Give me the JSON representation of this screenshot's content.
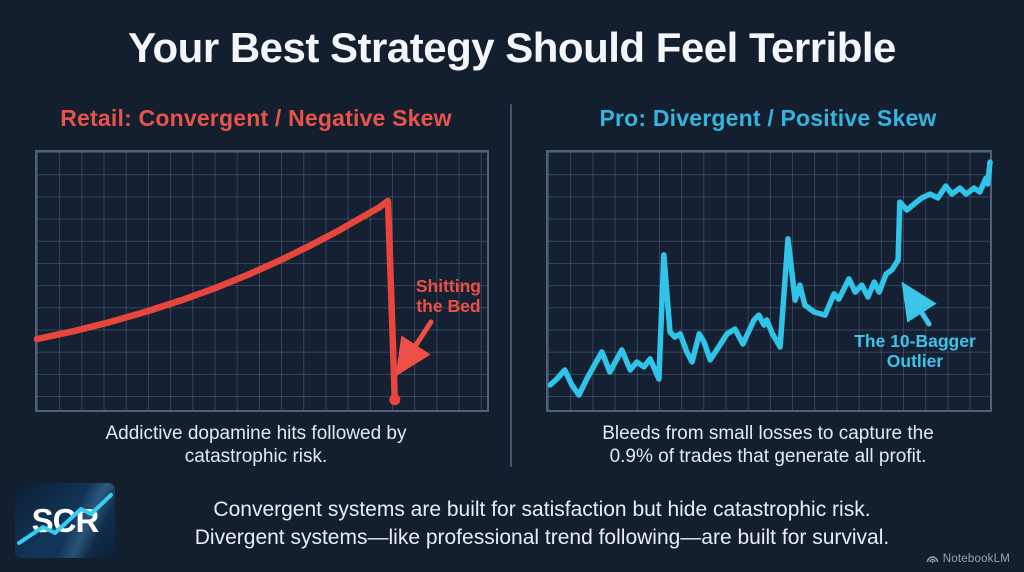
{
  "page": {
    "title": "Your Best Strategy Should Feel Terrible",
    "watermark_label": "NotebookLM",
    "background_color": "#131e2f"
  },
  "left_panel": {
    "heading": "Retail: Convergent / Negative Skew",
    "heading_color": "#e8544a",
    "annotation_line1": "Shitting",
    "annotation_line2": "the Bed",
    "caption_line1": "Addictive dopamine hits followed by",
    "caption_line2": "catastrophic risk."
  },
  "right_panel": {
    "heading": "Pro: Divergent / Positive Skew",
    "heading_color": "#35b5de",
    "annotation_line1": "The 10-Bagger",
    "annotation_line2": "Outlier",
    "caption_line1": "Bleeds from small losses to capture the",
    "caption_line2": "0.9% of trades that generate all profit."
  },
  "footer": {
    "logo_text": "SCR",
    "line1": "Convergent systems are built for satisfaction but hide catastrophic risk.",
    "line2": "Divergent systems—like professional trend following—are built for survival."
  },
  "chart_data": [
    {
      "type": "line",
      "title": "Retail: Convergent / Negative Skew",
      "description": "Schematic equity curve: smooth accelerating gains ending in a catastrophic vertical crash marked by a dot",
      "annotation": "Shitting the Bed",
      "color": "#e8453c",
      "grid": true,
      "axes": "none (schematic, no tick labels)",
      "xlabel": "",
      "ylabel": "",
      "xlim_pct": [
        0,
        100
      ],
      "ylim_pct": [
        0,
        100
      ],
      "end_dot": true,
      "points_pct": [
        [
          0,
          27.5
        ],
        [
          8,
          30.5
        ],
        [
          16,
          34
        ],
        [
          24,
          38
        ],
        [
          32,
          42.5
        ],
        [
          40,
          47.5
        ],
        [
          47,
          52.5
        ],
        [
          54,
          58
        ],
        [
          61,
          64
        ],
        [
          67,
          69.5
        ],
        [
          72,
          74.5
        ],
        [
          76,
          78.5
        ],
        [
          78,
          81
        ],
        [
          79.5,
          4
        ]
      ]
    },
    {
      "type": "line",
      "title": "Pro: Divergent / Positive Skew",
      "description": "Schematic equity curve: jagged small losses and spikes grinding upward, with a large outlier jump near the right labeled 'The 10-Bagger Outlier'",
      "annotation": "The 10-Bagger Outlier",
      "color": "#2fc4e8",
      "grid": true,
      "axes": "none (schematic, no tick labels)",
      "xlabel": "",
      "ylabel": "",
      "xlim_pct": [
        0,
        100
      ],
      "ylim_pct": [
        0,
        100
      ],
      "end_dot": false,
      "points_pct": [
        [
          0.5,
          9.7
        ],
        [
          2,
          12
        ],
        [
          3.8,
          15.5
        ],
        [
          5.4,
          9.7
        ],
        [
          7,
          5.8
        ],
        [
          9,
          12.8
        ],
        [
          12.2,
          22.5
        ],
        [
          14,
          14.7
        ],
        [
          16.7,
          23.3
        ],
        [
          18.6,
          15.5
        ],
        [
          20.1,
          18.6
        ],
        [
          21.7,
          16.7
        ],
        [
          23.1,
          19.8
        ],
        [
          25.1,
          12
        ],
        [
          26.2,
          60.1
        ],
        [
          27.6,
          30.2
        ],
        [
          28.7,
          28.3
        ],
        [
          29.9,
          29.5
        ],
        [
          31.4,
          22.5
        ],
        [
          32.6,
          18.6
        ],
        [
          34.2,
          29.5
        ],
        [
          35.3,
          26.4
        ],
        [
          36.7,
          19.4
        ],
        [
          38.9,
          25.2
        ],
        [
          40.5,
          29.5
        ],
        [
          42.3,
          31.4
        ],
        [
          44.1,
          25.6
        ],
        [
          46.6,
          34.9
        ],
        [
          47.7,
          36.8
        ],
        [
          48.9,
          32.9
        ],
        [
          49.5,
          34.9
        ],
        [
          50.7,
          29.8
        ],
        [
          52.5,
          24.4
        ],
        [
          54.3,
          66.3
        ],
        [
          55.9,
          42.6
        ],
        [
          57,
          48.4
        ],
        [
          58.1,
          40.7
        ],
        [
          60.2,
          38
        ],
        [
          62.7,
          36.8
        ],
        [
          64.7,
          45
        ],
        [
          65.8,
          43
        ],
        [
          68.1,
          50.8
        ],
        [
          69.5,
          45.7
        ],
        [
          71,
          48.4
        ],
        [
          72.4,
          43.8
        ],
        [
          73.8,
          49.6
        ],
        [
          74.9,
          45.7
        ],
        [
          76.5,
          52.7
        ],
        [
          77.8,
          54.3
        ],
        [
          79.2,
          58.1
        ],
        [
          79.6,
          80.6
        ],
        [
          81.2,
          77.5
        ],
        [
          82.8,
          79.8
        ],
        [
          84.6,
          82.2
        ],
        [
          86.4,
          83.7
        ],
        [
          88.2,
          82.2
        ],
        [
          90,
          86.8
        ],
        [
          91.4,
          83.7
        ],
        [
          93.2,
          86
        ],
        [
          94.6,
          83.7
        ],
        [
          96.4,
          86
        ],
        [
          97.7,
          84.5
        ],
        [
          99.1,
          89.9
        ],
        [
          99.5,
          87.6
        ],
        [
          100,
          96.1
        ]
      ]
    }
  ]
}
